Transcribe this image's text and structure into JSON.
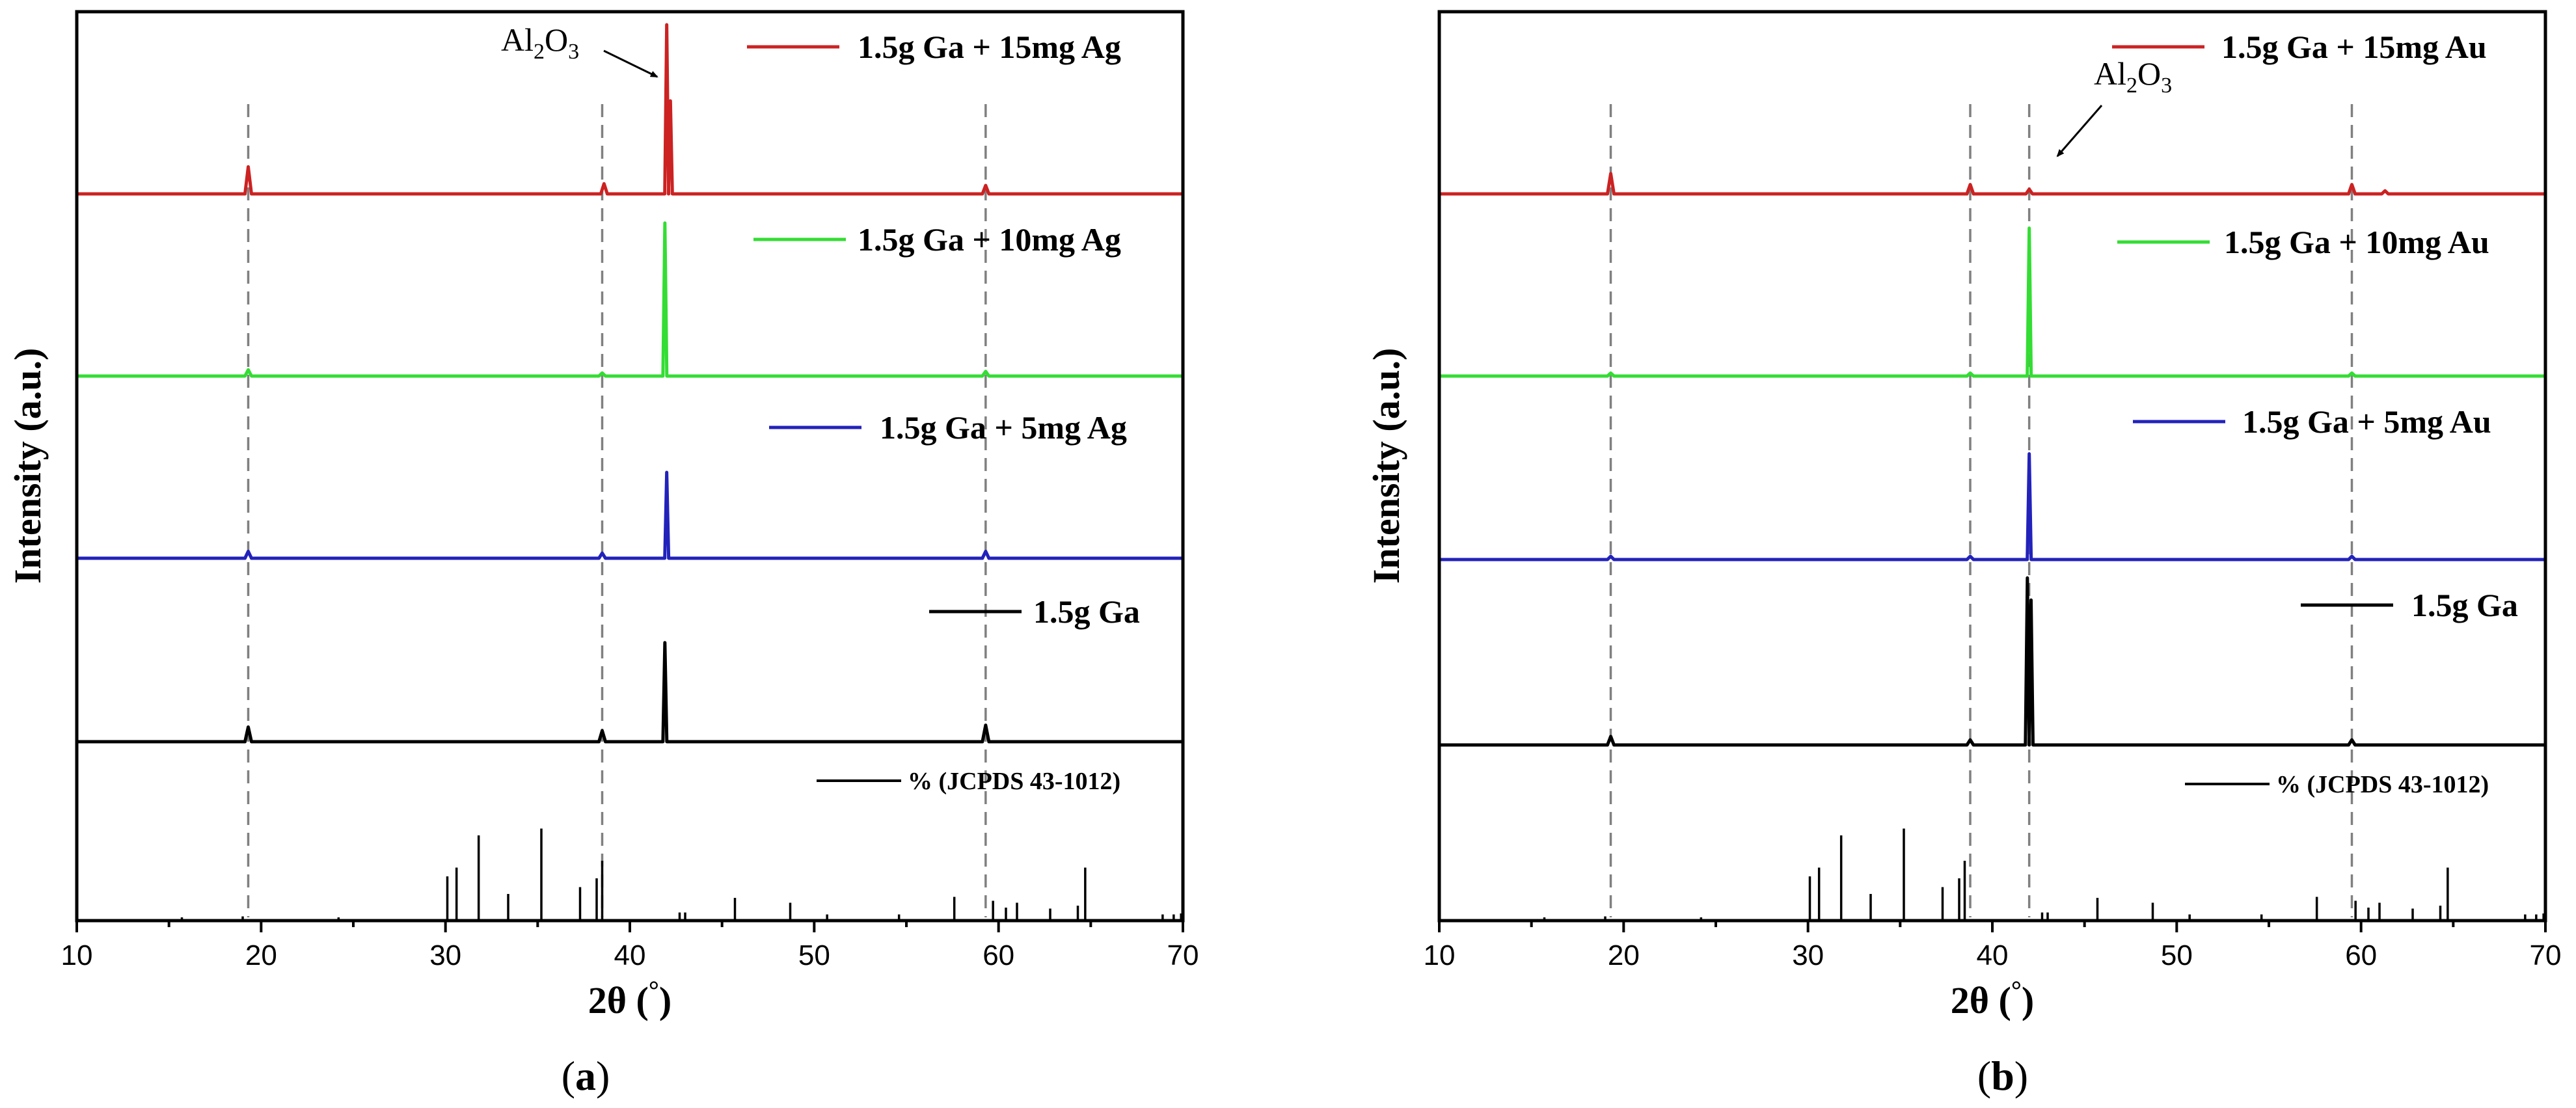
{
  "chart_data": [
    {
      "type": "line",
      "panel": "(a)",
      "caption_text": "a",
      "xlabel": "2θ (°)",
      "ylabel": "Intensity (a.u.)",
      "xlim": [
        10,
        70
      ],
      "xticks": [
        10,
        20,
        30,
        40,
        50,
        60,
        70
      ],
      "dashed_lines_x": [
        19.3,
        38.5,
        59.3
      ],
      "annotation": {
        "text": "Al2O3",
        "sub1": "2",
        "sub2": "3",
        "points_to_x": 42.0
      },
      "series": [
        {
          "name": "1.5g Ga + 15mg Ag",
          "color": "#cc2222",
          "level": 4,
          "peaks": [
            {
              "x": 19.3,
              "h": 0.16
            },
            {
              "x": 38.6,
              "h": 0.06
            },
            {
              "x": 42.0,
              "h": 1.0
            },
            {
              "x": 42.2,
              "h": 0.55
            },
            {
              "x": 59.3,
              "h": 0.05
            }
          ]
        },
        {
          "name": "1.5g Ga + 10mg Ag",
          "color": "#33dd33",
          "level": 3,
          "peaks": [
            {
              "x": 19.3,
              "h": 0.04
            },
            {
              "x": 38.5,
              "h": 0.02
            },
            {
              "x": 41.9,
              "h": 0.98
            },
            {
              "x": 59.3,
              "h": 0.03
            }
          ]
        },
        {
          "name": "1.5g Ga + 5mg Ag",
          "color": "#2222bb",
          "level": 2,
          "peaks": [
            {
              "x": 19.3,
              "h": 0.04
            },
            {
              "x": 38.5,
              "h": 0.03
            },
            {
              "x": 42.0,
              "h": 0.5
            },
            {
              "x": 59.3,
              "h": 0.04
            }
          ]
        },
        {
          "name": "1.5g Ga",
          "color": "#000000",
          "level": 1,
          "peaks": [
            {
              "x": 19.3,
              "h": 0.08
            },
            {
              "x": 38.5,
              "h": 0.06
            },
            {
              "x": 41.9,
              "h": 0.54
            },
            {
              "x": 59.3,
              "h": 0.09
            }
          ]
        }
      ],
      "reference": {
        "name": "% (JCPDS 43-1012)",
        "lines": [
          {
            "x": 15.7,
            "h": 2
          },
          {
            "x": 19.0,
            "h": 3
          },
          {
            "x": 24.2,
            "h": 2
          },
          {
            "x": 30.1,
            "h": 44
          },
          {
            "x": 30.6,
            "h": 53
          },
          {
            "x": 31.8,
            "h": 86
          },
          {
            "x": 33.4,
            "h": 26
          },
          {
            "x": 35.2,
            "h": 93
          },
          {
            "x": 37.3,
            "h": 33
          },
          {
            "x": 38.2,
            "h": 42
          },
          {
            "x": 38.5,
            "h": 60
          },
          {
            "x": 42.7,
            "h": 7
          },
          {
            "x": 43.0,
            "h": 7
          },
          {
            "x": 45.7,
            "h": 22
          },
          {
            "x": 48.7,
            "h": 17
          },
          {
            "x": 50.7,
            "h": 5
          },
          {
            "x": 54.6,
            "h": 5
          },
          {
            "x": 57.6,
            "h": 23
          },
          {
            "x": 59.7,
            "h": 19
          },
          {
            "x": 60.4,
            "h": 12
          },
          {
            "x": 61.0,
            "h": 17
          },
          {
            "x": 62.8,
            "h": 11
          },
          {
            "x": 64.3,
            "h": 14
          },
          {
            "x": 64.7,
            "h": 53
          },
          {
            "x": 68.9,
            "h": 5
          },
          {
            "x": 69.5,
            "h": 5
          },
          {
            "x": 69.9,
            "h": 6
          }
        ]
      }
    },
    {
      "type": "line",
      "panel": "(b)",
      "caption_text": "b",
      "xlabel": "2θ (°)",
      "ylabel": "Intensity (a.u.)",
      "xlim": [
        10,
        70
      ],
      "xticks": [
        10,
        20,
        30,
        40,
        50,
        60,
        70
      ],
      "dashed_lines_x": [
        19.3,
        38.8,
        42.0,
        59.5
      ],
      "annotation": {
        "text": "Al2O3",
        "sub1": "2",
        "sub2": "3",
        "points_to_x": 42.0
      },
      "series": [
        {
          "name": "1.5g Ga + 15mg Au",
          "color": "#cc2222",
          "level": 4,
          "peaks": [
            {
              "x": 19.3,
              "h": 0.13
            },
            {
              "x": 38.8,
              "h": 0.06
            },
            {
              "x": 42.0,
              "h": 0.03
            },
            {
              "x": 59.5,
              "h": 0.06
            },
            {
              "x": 61.3,
              "h": 0.02
            }
          ]
        },
        {
          "name": "1.5g Ga + 10mg Au",
          "color": "#33dd33",
          "level": 3,
          "peaks": [
            {
              "x": 19.3,
              "h": 0.02
            },
            {
              "x": 38.8,
              "h": 0.02
            },
            {
              "x": 42.0,
              "h": 0.98
            },
            {
              "x": 59.5,
              "h": 0.02
            }
          ]
        },
        {
          "name": "1.5g Ga + 5mg Au",
          "color": "#2222bb",
          "level": 2,
          "peaks": [
            {
              "x": 19.3,
              "h": 0.02
            },
            {
              "x": 38.8,
              "h": 0.02
            },
            {
              "x": 42.0,
              "h": 0.65
            },
            {
              "x": 59.5,
              "h": 0.02
            }
          ]
        },
        {
          "name": "1.5g Ga",
          "color": "#000000",
          "level": 1,
          "peaks": [
            {
              "x": 19.3,
              "h": 0.05
            },
            {
              "x": 38.8,
              "h": 0.03
            },
            {
              "x": 41.9,
              "h": 0.98
            },
            {
              "x": 42.1,
              "h": 0.85
            },
            {
              "x": 59.5,
              "h": 0.03
            }
          ]
        }
      ],
      "reference": {
        "name": "% (JCPDS 43-1012)",
        "lines": [
          {
            "x": 15.7,
            "h": 2
          },
          {
            "x": 19.0,
            "h": 3
          },
          {
            "x": 24.2,
            "h": 2
          },
          {
            "x": 30.1,
            "h": 44
          },
          {
            "x": 30.6,
            "h": 53
          },
          {
            "x": 31.8,
            "h": 86
          },
          {
            "x": 33.4,
            "h": 26
          },
          {
            "x": 35.2,
            "h": 93
          },
          {
            "x": 37.3,
            "h": 33
          },
          {
            "x": 38.2,
            "h": 42
          },
          {
            "x": 38.5,
            "h": 60
          },
          {
            "x": 42.7,
            "h": 7
          },
          {
            "x": 43.0,
            "h": 7
          },
          {
            "x": 45.7,
            "h": 22
          },
          {
            "x": 48.7,
            "h": 17
          },
          {
            "x": 50.7,
            "h": 5
          },
          {
            "x": 54.6,
            "h": 5
          },
          {
            "x": 57.6,
            "h": 23
          },
          {
            "x": 59.7,
            "h": 19
          },
          {
            "x": 60.4,
            "h": 12
          },
          {
            "x": 61.0,
            "h": 17
          },
          {
            "x": 62.8,
            "h": 11
          },
          {
            "x": 64.3,
            "h": 14
          },
          {
            "x": 64.7,
            "h": 53
          },
          {
            "x": 68.9,
            "h": 5
          },
          {
            "x": 69.5,
            "h": 5
          },
          {
            "x": 69.9,
            "h": 6
          }
        ]
      }
    }
  ]
}
